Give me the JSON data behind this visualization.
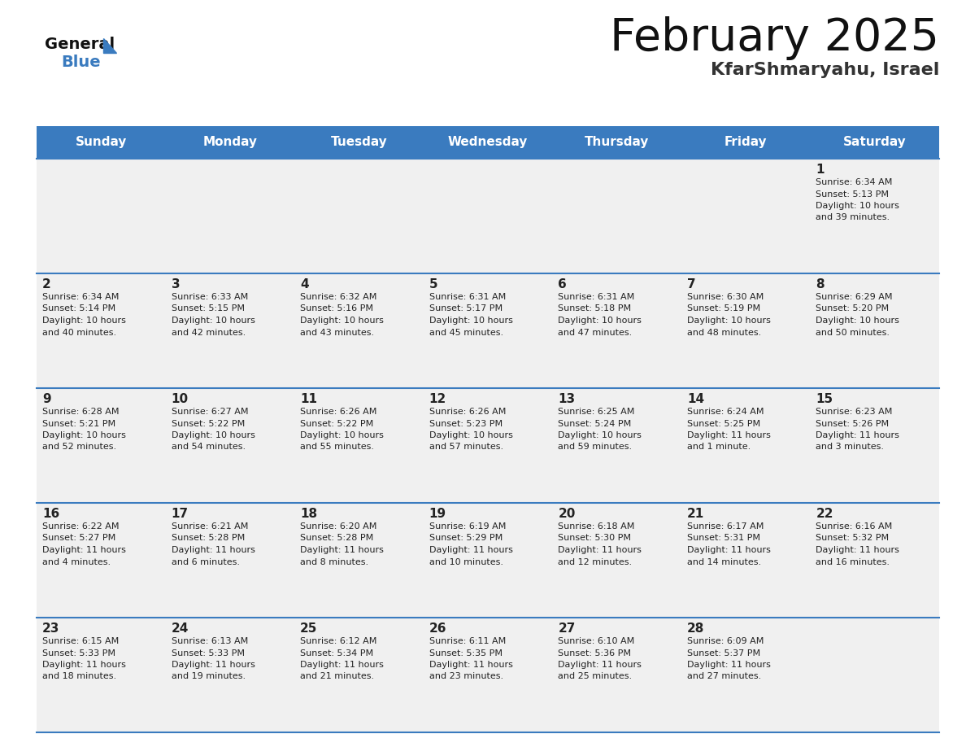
{
  "title": "February 2025",
  "subtitle": "KfarShmaryahu, Israel",
  "header_color": "#3a7bbf",
  "header_text_color": "#ffffff",
  "day_names": [
    "Sunday",
    "Monday",
    "Tuesday",
    "Wednesday",
    "Thursday",
    "Friday",
    "Saturday"
  ],
  "background_color": "#ffffff",
  "cell_bg_color": "#f0f0f0",
  "border_color": "#3a7bbf",
  "text_color": "#222222",
  "logo_general_color": "#111111",
  "logo_blue_color": "#3a7bbf",
  "logo_triangle_color": "#3a7bbf",
  "days": [
    {
      "day": 1,
      "col": 6,
      "row": 0,
      "sunrise": "6:34 AM",
      "sunset": "5:13 PM",
      "daylight": "10 hours and 39 minutes"
    },
    {
      "day": 2,
      "col": 0,
      "row": 1,
      "sunrise": "6:34 AM",
      "sunset": "5:14 PM",
      "daylight": "10 hours and 40 minutes"
    },
    {
      "day": 3,
      "col": 1,
      "row": 1,
      "sunrise": "6:33 AM",
      "sunset": "5:15 PM",
      "daylight": "10 hours and 42 minutes"
    },
    {
      "day": 4,
      "col": 2,
      "row": 1,
      "sunrise": "6:32 AM",
      "sunset": "5:16 PM",
      "daylight": "10 hours and 43 minutes"
    },
    {
      "day": 5,
      "col": 3,
      "row": 1,
      "sunrise": "6:31 AM",
      "sunset": "5:17 PM",
      "daylight": "10 hours and 45 minutes"
    },
    {
      "day": 6,
      "col": 4,
      "row": 1,
      "sunrise": "6:31 AM",
      "sunset": "5:18 PM",
      "daylight": "10 hours and 47 minutes"
    },
    {
      "day": 7,
      "col": 5,
      "row": 1,
      "sunrise": "6:30 AM",
      "sunset": "5:19 PM",
      "daylight": "10 hours and 48 minutes"
    },
    {
      "day": 8,
      "col": 6,
      "row": 1,
      "sunrise": "6:29 AM",
      "sunset": "5:20 PM",
      "daylight": "10 hours and 50 minutes"
    },
    {
      "day": 9,
      "col": 0,
      "row": 2,
      "sunrise": "6:28 AM",
      "sunset": "5:21 PM",
      "daylight": "10 hours and 52 minutes"
    },
    {
      "day": 10,
      "col": 1,
      "row": 2,
      "sunrise": "6:27 AM",
      "sunset": "5:22 PM",
      "daylight": "10 hours and 54 minutes"
    },
    {
      "day": 11,
      "col": 2,
      "row": 2,
      "sunrise": "6:26 AM",
      "sunset": "5:22 PM",
      "daylight": "10 hours and 55 minutes"
    },
    {
      "day": 12,
      "col": 3,
      "row": 2,
      "sunrise": "6:26 AM",
      "sunset": "5:23 PM",
      "daylight": "10 hours and 57 minutes"
    },
    {
      "day": 13,
      "col": 4,
      "row": 2,
      "sunrise": "6:25 AM",
      "sunset": "5:24 PM",
      "daylight": "10 hours and 59 minutes"
    },
    {
      "day": 14,
      "col": 5,
      "row": 2,
      "sunrise": "6:24 AM",
      "sunset": "5:25 PM",
      "daylight": "11 hours and 1 minute"
    },
    {
      "day": 15,
      "col": 6,
      "row": 2,
      "sunrise": "6:23 AM",
      "sunset": "5:26 PM",
      "daylight": "11 hours and 3 minutes"
    },
    {
      "day": 16,
      "col": 0,
      "row": 3,
      "sunrise": "6:22 AM",
      "sunset": "5:27 PM",
      "daylight": "11 hours and 4 minutes"
    },
    {
      "day": 17,
      "col": 1,
      "row": 3,
      "sunrise": "6:21 AM",
      "sunset": "5:28 PM",
      "daylight": "11 hours and 6 minutes"
    },
    {
      "day": 18,
      "col": 2,
      "row": 3,
      "sunrise": "6:20 AM",
      "sunset": "5:28 PM",
      "daylight": "11 hours and 8 minutes"
    },
    {
      "day": 19,
      "col": 3,
      "row": 3,
      "sunrise": "6:19 AM",
      "sunset": "5:29 PM",
      "daylight": "11 hours and 10 minutes"
    },
    {
      "day": 20,
      "col": 4,
      "row": 3,
      "sunrise": "6:18 AM",
      "sunset": "5:30 PM",
      "daylight": "11 hours and 12 minutes"
    },
    {
      "day": 21,
      "col": 5,
      "row": 3,
      "sunrise": "6:17 AM",
      "sunset": "5:31 PM",
      "daylight": "11 hours and 14 minutes"
    },
    {
      "day": 22,
      "col": 6,
      "row": 3,
      "sunrise": "6:16 AM",
      "sunset": "5:32 PM",
      "daylight": "11 hours and 16 minutes"
    },
    {
      "day": 23,
      "col": 0,
      "row": 4,
      "sunrise": "6:15 AM",
      "sunset": "5:33 PM",
      "daylight": "11 hours and 18 minutes"
    },
    {
      "day": 24,
      "col": 1,
      "row": 4,
      "sunrise": "6:13 AM",
      "sunset": "5:33 PM",
      "daylight": "11 hours and 19 minutes"
    },
    {
      "day": 25,
      "col": 2,
      "row": 4,
      "sunrise": "6:12 AM",
      "sunset": "5:34 PM",
      "daylight": "11 hours and 21 minutes"
    },
    {
      "day": 26,
      "col": 3,
      "row": 4,
      "sunrise": "6:11 AM",
      "sunset": "5:35 PM",
      "daylight": "11 hours and 23 minutes"
    },
    {
      "day": 27,
      "col": 4,
      "row": 4,
      "sunrise": "6:10 AM",
      "sunset": "5:36 PM",
      "daylight": "11 hours and 25 minutes"
    },
    {
      "day": 28,
      "col": 5,
      "row": 4,
      "sunrise": "6:09 AM",
      "sunset": "5:37 PM",
      "daylight": "11 hours and 27 minutes"
    }
  ],
  "num_rows": 5,
  "num_cols": 7
}
